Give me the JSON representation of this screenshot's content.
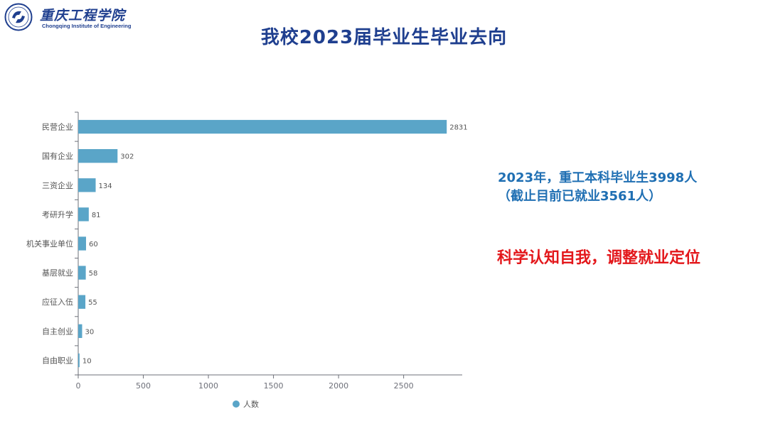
{
  "header": {
    "logo_icon": "school-emblem-icon",
    "school_name": "重庆工程学院",
    "school_name_en": "Chongqing Institute of Engineering"
  },
  "title": "我校2023届毕业生毕业去向",
  "notes": {
    "line1": "2023年，重工本科毕业生3998人",
    "line2": "（截止目前已就业3561人）",
    "line3": "科学认知自我，调整就业定位"
  },
  "colors": {
    "brand": "#1f3f8f",
    "bar": "#5aa5c8",
    "note_blue": "#1f6fb3",
    "note_red": "#e3171b"
  },
  "chart_data": {
    "type": "bar",
    "orientation": "horizontal",
    "categories": [
      "民营企业",
      "国有企业",
      "三资企业",
      "考研升学",
      "机关事业单位",
      "基层就业",
      "应征入伍",
      "自主创业",
      "自由职业"
    ],
    "series": [
      {
        "name": "人数",
        "values": [
          2831,
          302,
          134,
          81,
          60,
          58,
          55,
          30,
          10
        ]
      }
    ],
    "xlim": [
      0,
      2950
    ],
    "xticks": [
      "0",
      "500",
      "1000",
      "1500",
      "2000",
      "2500"
    ],
    "xtick_values": [
      0,
      500,
      1000,
      1500,
      2000,
      2500
    ],
    "grid": false,
    "legend": "bottom"
  }
}
